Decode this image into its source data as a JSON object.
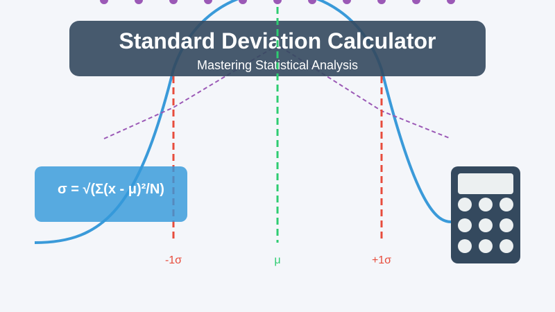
{
  "title": "Standard Deviation Calculator",
  "subtitle": "Mastering Statistical Analysis",
  "formula": "σ = √(Σ(x - μ)²/N)",
  "axis_labels": {
    "minus_sigma": "-1σ",
    "mean": "μ",
    "plus_sigma": "+1σ"
  },
  "icons": [
    "calculator-icon"
  ],
  "colors": {
    "background": "#f4f6fa",
    "curve": "#3a9ad9",
    "sigma_line": "#e74c3c",
    "mean_line": "#2ecc71",
    "dots": "#9b59b6",
    "title_bg": "#34495e",
    "formula_bg": "#3498db",
    "calculator": "#34495e",
    "calculator_keys": "#ecf0f1"
  }
}
